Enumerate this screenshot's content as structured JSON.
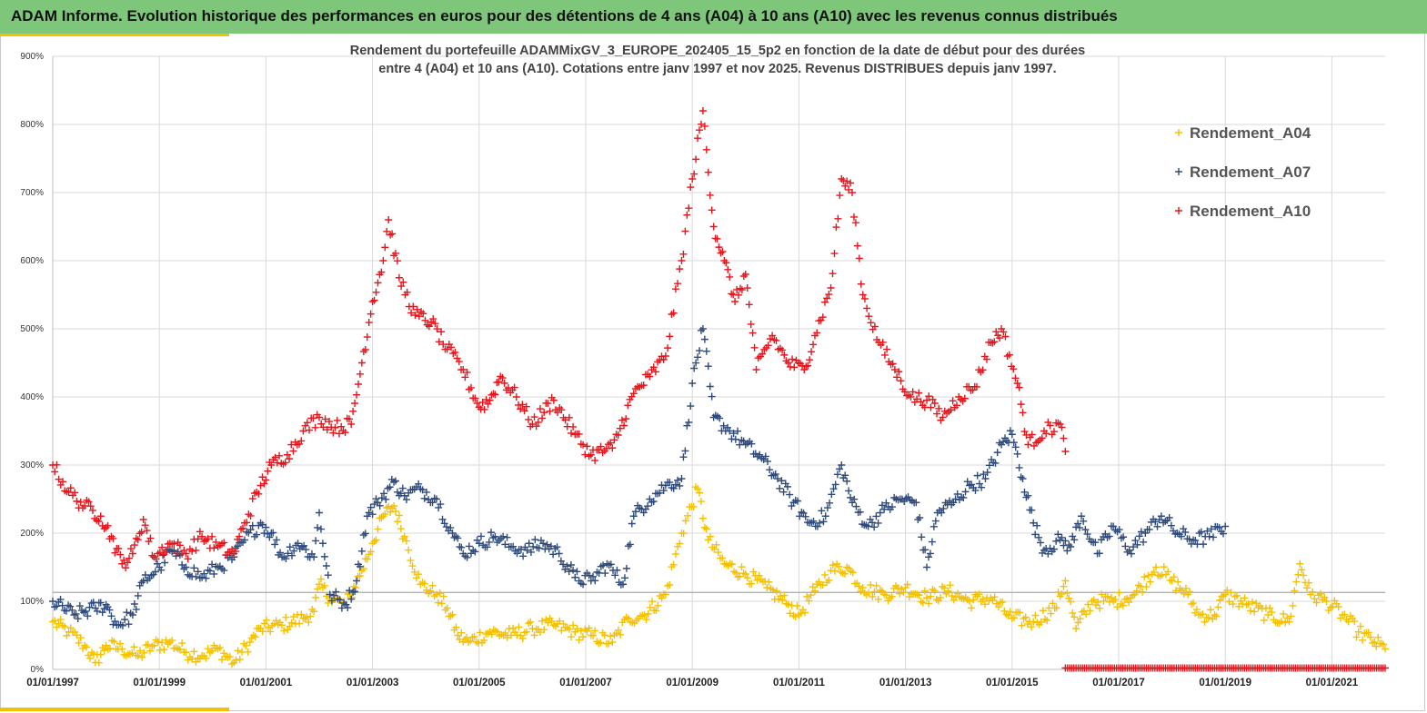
{
  "banner": {
    "title": "ADAM Informe. Evolution historique des performances en euros pour des détentions de 4 ans (A04) à 10 ans (A10) avec les revenus connus distribués"
  },
  "colors": {
    "banner_bg": "#7ec77a",
    "accent_yellow": "#f2c200",
    "A04": "#f5c000",
    "A07": "#2f4b7c",
    "A10": "#e8141b",
    "grid": "#d9d9d9"
  },
  "chart_data": {
    "type": "scatter",
    "title_line1": "Rendement du portefeuille ADAMMixGV_3_EUROPE_202405_15_5p2  en fonction de la date de début pour des durées",
    "title_line2": "entre 4 (A04) et 10 ans (A10). Cotations entre janv 1997 et nov 2025. Revenus DISTRIBUES depuis janv 1997.",
    "x_axis": {
      "min": 1997.0,
      "max": 2022.0,
      "tick_labels": [
        "01/01/1997",
        "01/01/1999",
        "01/01/2001",
        "01/01/2003",
        "01/01/2005",
        "01/01/2007",
        "01/01/2009",
        "01/01/2011",
        "01/01/2013",
        "01/01/2015",
        "01/01/2017",
        "01/01/2019",
        "01/01/2021"
      ]
    },
    "y_axis": {
      "min": 0,
      "max": 900,
      "unit": "%",
      "tick_labels": [
        "0%",
        "100%",
        "200%",
        "300%",
        "400%",
        "500%",
        "600%",
        "700%",
        "800%",
        "900%"
      ]
    },
    "grid": true,
    "reference_line": 113,
    "legend": {
      "position": "top-right"
    },
    "series": [
      {
        "name": "Rendement_A04",
        "color": "#f5c000",
        "x_start": 1997.0,
        "points": [
          [
            1997.0,
            70
          ],
          [
            1997.3,
            55
          ],
          [
            1997.6,
            35
          ],
          [
            1997.8,
            10
          ],
          [
            1998.0,
            35
          ],
          [
            1998.3,
            30
          ],
          [
            1998.6,
            20
          ],
          [
            1998.9,
            35
          ],
          [
            1999.2,
            40
          ],
          [
            1999.5,
            25
          ],
          [
            1999.8,
            20
          ],
          [
            2000.1,
            30
          ],
          [
            2000.4,
            10
          ],
          [
            2000.7,
            40
          ],
          [
            2000.9,
            60
          ],
          [
            2001.3,
            65
          ],
          [
            2001.7,
            75
          ],
          [
            2001.9,
            85
          ],
          [
            2002.0,
            125
          ],
          [
            2002.2,
            105
          ],
          [
            2002.5,
            95
          ],
          [
            2002.8,
            145
          ],
          [
            2003.0,
            185
          ],
          [
            2003.2,
            225
          ],
          [
            2003.4,
            240
          ],
          [
            2003.6,
            195
          ],
          [
            2003.9,
            125
          ],
          [
            2004.2,
            110
          ],
          [
            2004.4,
            90
          ],
          [
            2004.6,
            50
          ],
          [
            2004.8,
            40
          ],
          [
            2005.2,
            55
          ],
          [
            2005.6,
            50
          ],
          [
            2006.0,
            60
          ],
          [
            2006.4,
            65
          ],
          [
            2006.8,
            55
          ],
          [
            2007.1,
            50
          ],
          [
            2007.5,
            40
          ],
          [
            2007.8,
            75
          ],
          [
            2008.1,
            80
          ],
          [
            2008.5,
            110
          ],
          [
            2008.8,
            200
          ],
          [
            2009.1,
            265
          ],
          [
            2009.3,
            190
          ],
          [
            2009.6,
            155
          ],
          [
            2010.0,
            140
          ],
          [
            2010.4,
            120
          ],
          [
            2010.8,
            95
          ],
          [
            2011.0,
            80
          ],
          [
            2011.3,
            115
          ],
          [
            2011.6,
            145
          ],
          [
            2011.9,
            150
          ],
          [
            2012.2,
            120
          ],
          [
            2012.6,
            110
          ],
          [
            2013.0,
            120
          ],
          [
            2013.4,
            105
          ],
          [
            2013.8,
            115
          ],
          [
            2014.2,
            100
          ],
          [
            2014.6,
            105
          ],
          [
            2015.0,
            75
          ],
          [
            2015.4,
            70
          ],
          [
            2015.8,
            90
          ],
          [
            2016.0,
            130
          ],
          [
            2016.2,
            60
          ],
          [
            2016.5,
            100
          ],
          [
            2016.9,
            100
          ],
          [
            2017.3,
            110
          ],
          [
            2017.7,
            150
          ],
          [
            2018.0,
            130
          ],
          [
            2018.3,
            110
          ],
          [
            2018.5,
            80
          ],
          [
            2018.8,
            80
          ],
          [
            2019.0,
            110
          ],
          [
            2019.4,
            95
          ],
          [
            2019.8,
            80
          ],
          [
            2020.2,
            70
          ],
          [
            2020.4,
            155
          ],
          [
            2020.6,
            110
          ],
          [
            2020.9,
            100
          ],
          [
            2021.2,
            80
          ],
          [
            2021.5,
            55
          ],
          [
            2021.8,
            40
          ],
          [
            2022.0,
            30
          ]
        ]
      },
      {
        "name": "Rendement_A07",
        "color": "#2f4b7c",
        "x_start": 1997.0,
        "points": [
          [
            1997.0,
            100
          ],
          [
            1997.4,
            80
          ],
          [
            1997.8,
            90
          ],
          [
            1998.0,
            95
          ],
          [
            1998.2,
            65
          ],
          [
            1998.5,
            80
          ],
          [
            1998.7,
            130
          ],
          [
            1999.0,
            150
          ],
          [
            1999.2,
            175
          ],
          [
            1999.5,
            150
          ],
          [
            1999.8,
            135
          ],
          [
            2000.1,
            150
          ],
          [
            2000.4,
            165
          ],
          [
            2000.6,
            190
          ],
          [
            2000.9,
            215
          ],
          [
            2001.1,
            200
          ],
          [
            2001.3,
            165
          ],
          [
            2001.6,
            185
          ],
          [
            2001.9,
            165
          ],
          [
            2002.0,
            230
          ],
          [
            2002.2,
            110
          ],
          [
            2002.5,
            95
          ],
          [
            2002.7,
            130
          ],
          [
            2002.9,
            225
          ],
          [
            2003.1,
            245
          ],
          [
            2003.4,
            275
          ],
          [
            2003.6,
            255
          ],
          [
            2003.9,
            265
          ],
          [
            2004.2,
            250
          ],
          [
            2004.5,
            200
          ],
          [
            2004.7,
            170
          ],
          [
            2005.0,
            185
          ],
          [
            2005.3,
            195
          ],
          [
            2005.6,
            180
          ],
          [
            2005.9,
            175
          ],
          [
            2006.2,
            185
          ],
          [
            2006.5,
            170
          ],
          [
            2006.8,
            135
          ],
          [
            2007.1,
            130
          ],
          [
            2007.4,
            155
          ],
          [
            2007.7,
            125
          ],
          [
            2007.9,
            225
          ],
          [
            2008.2,
            250
          ],
          [
            2008.5,
            270
          ],
          [
            2008.8,
            280
          ],
          [
            2009.0,
            420
          ],
          [
            2009.2,
            500
          ],
          [
            2009.4,
            370
          ],
          [
            2009.7,
            350
          ],
          [
            2010.0,
            330
          ],
          [
            2010.3,
            310
          ],
          [
            2010.6,
            280
          ],
          [
            2010.9,
            245
          ],
          [
            2011.2,
            215
          ],
          [
            2011.5,
            225
          ],
          [
            2011.8,
            300
          ],
          [
            2012.0,
            245
          ],
          [
            2012.3,
            210
          ],
          [
            2012.6,
            235
          ],
          [
            2012.9,
            250
          ],
          [
            2013.2,
            245
          ],
          [
            2013.4,
            150
          ],
          [
            2013.6,
            230
          ],
          [
            2013.9,
            245
          ],
          [
            2014.2,
            270
          ],
          [
            2014.5,
            280
          ],
          [
            2014.8,
            330
          ],
          [
            2015.0,
            345
          ],
          [
            2015.2,
            280
          ],
          [
            2015.4,
            215
          ],
          [
            2015.6,
            175
          ],
          [
            2015.9,
            190
          ],
          [
            2016.1,
            180
          ],
          [
            2016.3,
            225
          ],
          [
            2016.6,
            170
          ],
          [
            2016.9,
            210
          ],
          [
            2017.2,
            175
          ],
          [
            2017.5,
            200
          ],
          [
            2017.8,
            225
          ],
          [
            2018.1,
            200
          ],
          [
            2018.4,
            190
          ],
          [
            2018.7,
            195
          ],
          [
            2019.0,
            210
          ]
        ]
      },
      {
        "name": "Rendement_A10",
        "color": "#e8141b",
        "x_start": 1997.0,
        "points": [
          [
            1997.0,
            300
          ],
          [
            1997.3,
            260
          ],
          [
            1997.6,
            240
          ],
          [
            1997.9,
            225
          ],
          [
            1998.1,
            195
          ],
          [
            1998.3,
            155
          ],
          [
            1998.5,
            170
          ],
          [
            1998.7,
            220
          ],
          [
            1998.9,
            165
          ],
          [
            1999.2,
            185
          ],
          [
            1999.5,
            170
          ],
          [
            1999.8,
            195
          ],
          [
            2000.1,
            180
          ],
          [
            2000.4,
            170
          ],
          [
            2000.6,
            215
          ],
          [
            2000.9,
            270
          ],
          [
            2001.1,
            300
          ],
          [
            2001.4,
            315
          ],
          [
            2001.7,
            350
          ],
          [
            2002.0,
            370
          ],
          [
            2002.3,
            355
          ],
          [
            2002.6,
            360
          ],
          [
            2002.8,
            450
          ],
          [
            2003.0,
            540
          ],
          [
            2003.2,
            600
          ],
          [
            2003.3,
            660
          ],
          [
            2003.5,
            575
          ],
          [
            2003.8,
            520
          ],
          [
            2004.1,
            510
          ],
          [
            2004.4,
            470
          ],
          [
            2004.7,
            440
          ],
          [
            2005.0,
            385
          ],
          [
            2005.2,
            395
          ],
          [
            2005.4,
            430
          ],
          [
            2005.7,
            400
          ],
          [
            2006.0,
            360
          ],
          [
            2006.4,
            395
          ],
          [
            2006.8,
            345
          ],
          [
            2007.1,
            315
          ],
          [
            2007.5,
            325
          ],
          [
            2007.9,
            405
          ],
          [
            2008.2,
            430
          ],
          [
            2008.5,
            460
          ],
          [
            2008.8,
            600
          ],
          [
            2009.0,
            720
          ],
          [
            2009.2,
            820
          ],
          [
            2009.4,
            650
          ],
          [
            2009.6,
            600
          ],
          [
            2009.8,
            540
          ],
          [
            2010.0,
            580
          ],
          [
            2010.2,
            440
          ],
          [
            2010.5,
            490
          ],
          [
            2010.8,
            450
          ],
          [
            2011.1,
            440
          ],
          [
            2011.3,
            490
          ],
          [
            2011.6,
            560
          ],
          [
            2011.8,
            720
          ],
          [
            2012.0,
            700
          ],
          [
            2012.2,
            550
          ],
          [
            2012.5,
            480
          ],
          [
            2012.8,
            440
          ],
          [
            2013.1,
            400
          ],
          [
            2013.4,
            395
          ],
          [
            2013.7,
            370
          ],
          [
            2014.0,
            400
          ],
          [
            2014.3,
            415
          ],
          [
            2014.6,
            480
          ],
          [
            2014.8,
            500
          ],
          [
            2015.1,
            420
          ],
          [
            2015.3,
            330
          ],
          [
            2015.6,
            350
          ],
          [
            2015.9,
            360
          ],
          [
            2016.0,
            320
          ]
        ]
      }
    ],
    "flat_red_band": {
      "x_from": 2016.0,
      "x_to": 2022.0,
      "y": 2
    }
  },
  "legend_items": [
    "Rendement_A04",
    "Rendement_A07",
    "Rendement_A10"
  ]
}
